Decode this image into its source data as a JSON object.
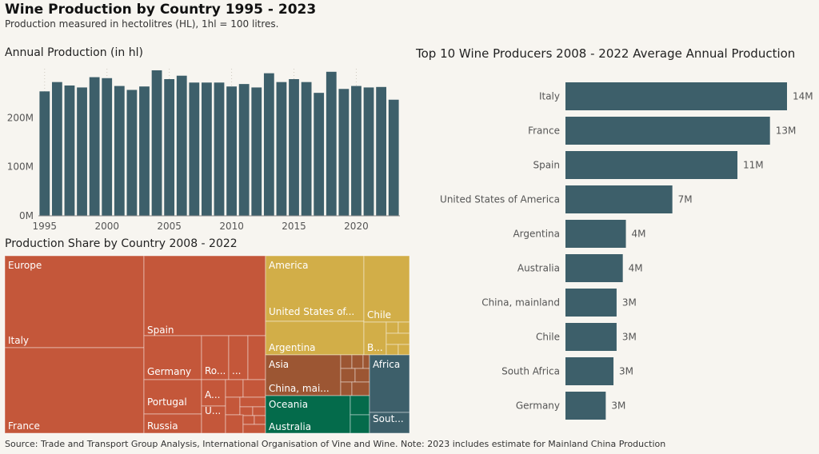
{
  "header": {
    "title": "Wine Production by Country 1995 - 2023",
    "subtitle": "Production measured in hectolitres (HL), 1hl = 100 litres."
  },
  "footer": {
    "source": "Source: Trade and Transport Group Analysis, International Organisation of Vine and Wine. Note: 2023 includes estimate for Mainland China Production"
  },
  "colors": {
    "bar": "#3d5f6a",
    "europe": "#c4573a",
    "america": "#d2ae48",
    "asia": "#9c5633",
    "oceania": "#046b4b",
    "africa": "#3d5f6a",
    "background": "#f7f5f0"
  },
  "chart_data": [
    {
      "type": "bar",
      "title": "Annual Production (in hl)",
      "x": [
        1995,
        1996,
        1997,
        1998,
        1999,
        2000,
        2001,
        2002,
        2003,
        2004,
        2005,
        2006,
        2007,
        2008,
        2009,
        2010,
        2011,
        2012,
        2013,
        2014,
        2015,
        2016,
        2017,
        2018,
        2019,
        2020,
        2021,
        2022,
        2023
      ],
      "values": [
        254,
        273,
        266,
        262,
        283,
        281,
        265,
        257,
        264,
        297,
        279,
        286,
        272,
        272,
        272,
        264,
        269,
        262,
        291,
        273,
        279,
        273,
        251,
        294,
        259,
        265,
        262,
        263,
        237
      ],
      "unit": "M hl",
      "ylim": [
        0,
        310
      ],
      "yticks": [
        0,
        100,
        200
      ],
      "ytick_labels": [
        "0M",
        "100M",
        "200M"
      ],
      "xticks": [
        1995,
        2000,
        2005,
        2010,
        2015,
        2020
      ],
      "xtick_labels": [
        "1995",
        "2000",
        "2005",
        "2010",
        "2015",
        "2020"
      ]
    },
    {
      "type": "treemap",
      "title": "Production Share by Country 2008 - 2022",
      "groups": [
        {
          "name": "Europe",
          "color": "#c4573a",
          "items": [
            {
              "label": "Italy",
              "value": 14
            },
            {
              "label": "France",
              "value": 13
            },
            {
              "label": "Spain",
              "value": 11
            },
            {
              "label": "Germany",
              "value": 3
            },
            {
              "label": "Portugal",
              "value": 1.7
            },
            {
              "label": "Russia",
              "value": 1.4
            },
            {
              "label": "Ro...",
              "value": 1.4
            },
            {
              "label": "...",
              "value": 1
            },
            {
              "label": "A...",
              "value": 0.8
            },
            {
              "label": "U...",
              "value": 0.8
            },
            {
              "label": "",
              "value": 1.5
            }
          ]
        },
        {
          "name": "America",
          "color": "#d2ae48",
          "items": [
            {
              "label": "United States of...",
              "value": 7
            },
            {
              "label": "Argentina",
              "value": 4
            },
            {
              "label": "Chile",
              "value": 3
            },
            {
              "label": "B...",
              "value": 1
            },
            {
              "label": "",
              "value": 0.7
            }
          ]
        },
        {
          "name": "Asia",
          "color": "#9c5633",
          "items": [
            {
              "label": "China, mai...",
              "value": 3
            },
            {
              "label": "",
              "value": 1
            }
          ]
        },
        {
          "name": "Oceania",
          "color": "#046b4b",
          "items": [
            {
              "label": "Australia",
              "value": 4
            },
            {
              "label": "",
              "value": 0.6
            }
          ]
        },
        {
          "name": "Africa",
          "color": "#3d5f6a",
          "items": [
            {
              "label": "Sout...",
              "value": 3
            },
            {
              "label": "",
              "value": 0.8
            }
          ]
        }
      ]
    },
    {
      "type": "bar",
      "orientation": "horizontal",
      "title": "Top 10 Wine Producers 2008 - 2022 Average Annual Production",
      "categories": [
        "Italy",
        "France",
        "Spain",
        "United States of America",
        "Argentina",
        "Australia",
        "China, mainland",
        "Chile",
        "South Africa",
        "Germany"
      ],
      "values": [
        14,
        13,
        11,
        7,
        4,
        4,
        3,
        3,
        3,
        3
      ],
      "data_labels": [
        "14M",
        "13M",
        "11M",
        "7M",
        "4M",
        "4M",
        "3M",
        "3M",
        "3M",
        "3M"
      ],
      "plot_values": [
        14.3,
        13.2,
        11.1,
        6.9,
        3.9,
        3.7,
        3.3,
        3.3,
        3.1,
        2.6
      ],
      "unit": "M hl"
    }
  ]
}
